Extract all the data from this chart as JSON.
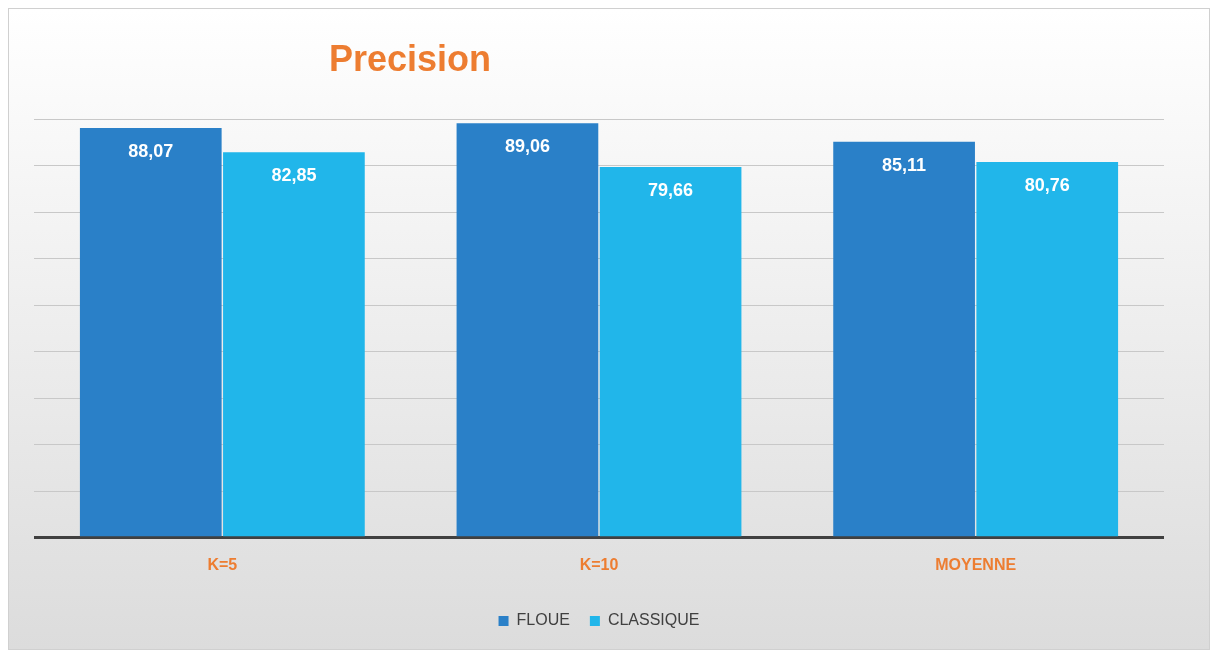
{
  "chart_data": {
    "type": "bar",
    "title": "Precision",
    "categories": [
      "K=5",
      "K=10",
      "MOYENNE"
    ],
    "series": [
      {
        "name": "FLOUE",
        "color": "#2a80c8",
        "values": [
          88.07,
          89.06,
          85.11
        ],
        "value_labels": [
          "88,07",
          "89,06",
          "85,11"
        ]
      },
      {
        "name": "CLASSIQUE",
        "color": "#21b6ea",
        "values": [
          82.85,
          79.66,
          80.76
        ],
        "value_labels": [
          "82,85",
          "79,66",
          "80,76"
        ]
      }
    ],
    "grid": "y",
    "legend": "bottom",
    "tick_labels": "x"
  }
}
